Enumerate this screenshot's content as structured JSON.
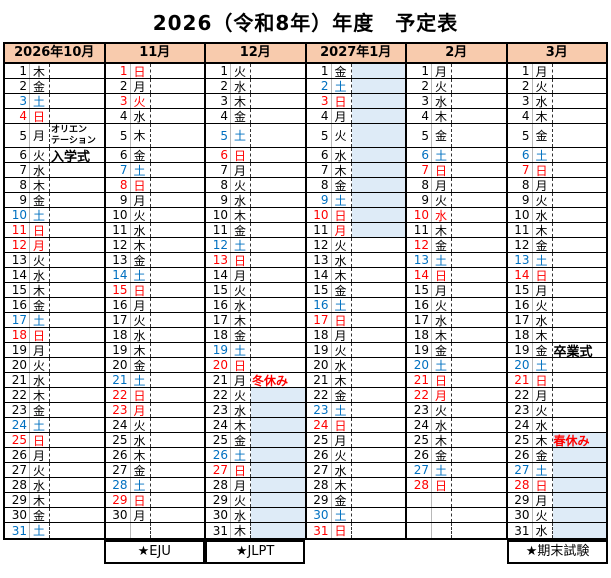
{
  "title": "2026（令和8年）年度　予定表",
  "colors": {
    "red": "#FF0000",
    "blue": "#0070C0",
    "highlight": "#DEEBF7",
    "header_bg": "#F8CBAD"
  },
  "months": [
    {
      "header": "2026年10月",
      "footer": "",
      "days": [
        {
          "n": "1",
          "w": "木"
        },
        {
          "n": "2",
          "w": "金"
        },
        {
          "n": "3",
          "w": "土",
          "c": "b"
        },
        {
          "n": "4",
          "w": "日",
          "c": "r"
        },
        {
          "n": "5",
          "w": "月",
          "note": "オリエン\nテーション",
          "noteStyle": "small-bold"
        },
        {
          "n": "6",
          "w": "火",
          "note": "入学式",
          "noteStyle": "bold"
        },
        {
          "n": "7",
          "w": "水"
        },
        {
          "n": "8",
          "w": "木"
        },
        {
          "n": "9",
          "w": "金"
        },
        {
          "n": "10",
          "w": "土",
          "c": "b"
        },
        {
          "n": "11",
          "w": "日",
          "c": "r"
        },
        {
          "n": "12",
          "w": "月",
          "c": "r"
        },
        {
          "n": "13",
          "w": "火"
        },
        {
          "n": "14",
          "w": "水"
        },
        {
          "n": "15",
          "w": "木"
        },
        {
          "n": "16",
          "w": "金"
        },
        {
          "n": "17",
          "w": "土",
          "c": "b"
        },
        {
          "n": "18",
          "w": "日",
          "c": "r"
        },
        {
          "n": "19",
          "w": "月"
        },
        {
          "n": "20",
          "w": "火"
        },
        {
          "n": "21",
          "w": "水"
        },
        {
          "n": "22",
          "w": "木"
        },
        {
          "n": "23",
          "w": "金"
        },
        {
          "n": "24",
          "w": "土",
          "c": "b"
        },
        {
          "n": "25",
          "w": "日",
          "c": "r"
        },
        {
          "n": "26",
          "w": "月"
        },
        {
          "n": "27",
          "w": "火"
        },
        {
          "n": "28",
          "w": "水"
        },
        {
          "n": "29",
          "w": "木"
        },
        {
          "n": "30",
          "w": "金"
        },
        {
          "n": "31",
          "w": "土",
          "c": "b"
        }
      ]
    },
    {
      "header": "11月",
      "footer": "★EJU",
      "days": [
        {
          "n": "1",
          "w": "日",
          "c": "r"
        },
        {
          "n": "2",
          "w": "月"
        },
        {
          "n": "3",
          "w": "火",
          "c": "r"
        },
        {
          "n": "4",
          "w": "水"
        },
        {
          "n": "5",
          "w": "木"
        },
        {
          "n": "6",
          "w": "金"
        },
        {
          "n": "7",
          "w": "土",
          "c": "b"
        },
        {
          "n": "8",
          "w": "日",
          "c": "r"
        },
        {
          "n": "9",
          "w": "月"
        },
        {
          "n": "10",
          "w": "火"
        },
        {
          "n": "11",
          "w": "水"
        },
        {
          "n": "12",
          "w": "木"
        },
        {
          "n": "13",
          "w": "金"
        },
        {
          "n": "14",
          "w": "土",
          "c": "b"
        },
        {
          "n": "15",
          "w": "日",
          "c": "r"
        },
        {
          "n": "16",
          "w": "月"
        },
        {
          "n": "17",
          "w": "火"
        },
        {
          "n": "18",
          "w": "水"
        },
        {
          "n": "19",
          "w": "木"
        },
        {
          "n": "20",
          "w": "金"
        },
        {
          "n": "21",
          "w": "土",
          "c": "b"
        },
        {
          "n": "22",
          "w": "日",
          "c": "r"
        },
        {
          "n": "23",
          "w": "月",
          "c": "r"
        },
        {
          "n": "24",
          "w": "火"
        },
        {
          "n": "25",
          "w": "水"
        },
        {
          "n": "26",
          "w": "木"
        },
        {
          "n": "27",
          "w": "金"
        },
        {
          "n": "28",
          "w": "土",
          "c": "b"
        },
        {
          "n": "29",
          "w": "日",
          "c": "r"
        },
        {
          "n": "30",
          "w": "月"
        },
        {}
      ]
    },
    {
      "header": "12月",
      "footer": "★JLPT",
      "days": [
        {
          "n": "1",
          "w": "火"
        },
        {
          "n": "2",
          "w": "水"
        },
        {
          "n": "3",
          "w": "木"
        },
        {
          "n": "4",
          "w": "金"
        },
        {
          "n": "5",
          "w": "土",
          "c": "b"
        },
        {
          "n": "6",
          "w": "日",
          "c": "r"
        },
        {
          "n": "7",
          "w": "月"
        },
        {
          "n": "8",
          "w": "火"
        },
        {
          "n": "9",
          "w": "水"
        },
        {
          "n": "10",
          "w": "木"
        },
        {
          "n": "11",
          "w": "金"
        },
        {
          "n": "12",
          "w": "土",
          "c": "b"
        },
        {
          "n": "13",
          "w": "日",
          "c": "r"
        },
        {
          "n": "14",
          "w": "月"
        },
        {
          "n": "15",
          "w": "火"
        },
        {
          "n": "16",
          "w": "水"
        },
        {
          "n": "17",
          "w": "木"
        },
        {
          "n": "18",
          "w": "金"
        },
        {
          "n": "19",
          "w": "土",
          "c": "b"
        },
        {
          "n": "20",
          "w": "日",
          "c": "r"
        },
        {
          "n": "21",
          "w": "月",
          "note": "冬休み",
          "noteStyle": "red-bold"
        },
        {
          "n": "22",
          "w": "火",
          "hl": true
        },
        {
          "n": "23",
          "w": "水",
          "hl": true
        },
        {
          "n": "24",
          "w": "木",
          "hl": true
        },
        {
          "n": "25",
          "w": "金",
          "hl": true
        },
        {
          "n": "26",
          "w": "土",
          "c": "b",
          "hl": true
        },
        {
          "n": "27",
          "w": "日",
          "c": "r",
          "hl": true
        },
        {
          "n": "28",
          "w": "月",
          "hl": true
        },
        {
          "n": "29",
          "w": "火",
          "hl": true
        },
        {
          "n": "30",
          "w": "水",
          "hl": true
        },
        {
          "n": "31",
          "w": "木",
          "hl": true
        }
      ]
    },
    {
      "header": "2027年1月",
      "footer": "",
      "days": [
        {
          "n": "1",
          "w": "金",
          "hl": true
        },
        {
          "n": "2",
          "w": "土",
          "c": "b",
          "hl": true
        },
        {
          "n": "3",
          "w": "日",
          "c": "r",
          "hl": true
        },
        {
          "n": "4",
          "w": "月",
          "hl": true
        },
        {
          "n": "5",
          "w": "火",
          "hl": true
        },
        {
          "n": "6",
          "w": "水",
          "hl": true
        },
        {
          "n": "7",
          "w": "木",
          "hl": true
        },
        {
          "n": "8",
          "w": "金",
          "hl": true
        },
        {
          "n": "9",
          "w": "土",
          "c": "b",
          "hl": true
        },
        {
          "n": "10",
          "w": "日",
          "c": "r",
          "hl": true
        },
        {
          "n": "11",
          "w": "月",
          "wc": "r",
          "hl": true
        },
        {
          "n": "12",
          "w": "火"
        },
        {
          "n": "13",
          "w": "水"
        },
        {
          "n": "14",
          "w": "木"
        },
        {
          "n": "15",
          "w": "金"
        },
        {
          "n": "16",
          "w": "土",
          "c": "b"
        },
        {
          "n": "17",
          "w": "日",
          "c": "r"
        },
        {
          "n": "18",
          "w": "月"
        },
        {
          "n": "19",
          "w": "火"
        },
        {
          "n": "20",
          "w": "水"
        },
        {
          "n": "21",
          "w": "木"
        },
        {
          "n": "22",
          "w": "金"
        },
        {
          "n": "23",
          "w": "土",
          "c": "b"
        },
        {
          "n": "24",
          "w": "日",
          "c": "r"
        },
        {
          "n": "25",
          "w": "月"
        },
        {
          "n": "26",
          "w": "火"
        },
        {
          "n": "27",
          "w": "水"
        },
        {
          "n": "28",
          "w": "木"
        },
        {
          "n": "29",
          "w": "金"
        },
        {
          "n": "30",
          "w": "土",
          "c": "b"
        },
        {
          "n": "31",
          "w": "日",
          "c": "r"
        }
      ]
    },
    {
      "header": "2月",
      "footer": "",
      "days": [
        {
          "n": "1",
          "w": "月"
        },
        {
          "n": "2",
          "w": "火"
        },
        {
          "n": "3",
          "w": "水"
        },
        {
          "n": "4",
          "w": "木"
        },
        {
          "n": "5",
          "w": "金"
        },
        {
          "n": "6",
          "w": "土",
          "c": "b"
        },
        {
          "n": "7",
          "w": "日",
          "c": "r"
        },
        {
          "n": "8",
          "w": "月"
        },
        {
          "n": "9",
          "w": "火"
        },
        {
          "n": "10",
          "w": "水",
          "c": "r"
        },
        {
          "n": "11",
          "w": "木"
        },
        {
          "n": "12",
          "w": "金",
          "c": "r",
          "wc": "k"
        },
        {
          "n": "13",
          "w": "土",
          "c": "b"
        },
        {
          "n": "14",
          "w": "日",
          "c": "r"
        },
        {
          "n": "15",
          "w": "月"
        },
        {
          "n": "16",
          "w": "火"
        },
        {
          "n": "17",
          "w": "水"
        },
        {
          "n": "18",
          "w": "木"
        },
        {
          "n": "19",
          "w": "金"
        },
        {
          "n": "20",
          "w": "土",
          "c": "b"
        },
        {
          "n": "21",
          "w": "日",
          "c": "r"
        },
        {
          "n": "22",
          "w": "月",
          "c": "r"
        },
        {
          "n": "23",
          "w": "火"
        },
        {
          "n": "24",
          "w": "水"
        },
        {
          "n": "25",
          "w": "木"
        },
        {
          "n": "26",
          "w": "金"
        },
        {
          "n": "27",
          "w": "土",
          "c": "b"
        },
        {
          "n": "28",
          "w": "日",
          "c": "r"
        },
        {},
        {},
        {}
      ]
    },
    {
      "header": "3月",
      "footer": "★期末試験",
      "days": [
        {
          "n": "1",
          "w": "月"
        },
        {
          "n": "2",
          "w": "火"
        },
        {
          "n": "3",
          "w": "水"
        },
        {
          "n": "4",
          "w": "木"
        },
        {
          "n": "5",
          "w": "金"
        },
        {
          "n": "6",
          "w": "土",
          "c": "b"
        },
        {
          "n": "7",
          "w": "日",
          "c": "r"
        },
        {
          "n": "8",
          "w": "月"
        },
        {
          "n": "9",
          "w": "火"
        },
        {
          "n": "10",
          "w": "水"
        },
        {
          "n": "11",
          "w": "木"
        },
        {
          "n": "12",
          "w": "金"
        },
        {
          "n": "13",
          "w": "土",
          "c": "b"
        },
        {
          "n": "14",
          "w": "日",
          "c": "r"
        },
        {
          "n": "15",
          "w": "月"
        },
        {
          "n": "16",
          "w": "火"
        },
        {
          "n": "17",
          "w": "水"
        },
        {
          "n": "18",
          "w": "木"
        },
        {
          "n": "19",
          "w": "金",
          "note": "卒業式",
          "noteStyle": "bold"
        },
        {
          "n": "20",
          "w": "土",
          "c": "b"
        },
        {
          "n": "21",
          "w": "日",
          "c": "r"
        },
        {
          "n": "22",
          "w": "月"
        },
        {
          "n": "23",
          "w": "火"
        },
        {
          "n": "24",
          "w": "水"
        },
        {
          "n": "25",
          "w": "木",
          "note": "春休み",
          "noteStyle": "red-bold",
          "hl": true
        },
        {
          "n": "26",
          "w": "金",
          "hl": true
        },
        {
          "n": "27",
          "w": "土",
          "c": "b",
          "hl": true
        },
        {
          "n": "28",
          "w": "日",
          "c": "r",
          "hl": true
        },
        {
          "n": "29",
          "w": "月",
          "hl": true
        },
        {
          "n": "30",
          "w": "火",
          "hl": true
        },
        {
          "n": "31",
          "w": "水",
          "hl": true
        }
      ]
    }
  ]
}
